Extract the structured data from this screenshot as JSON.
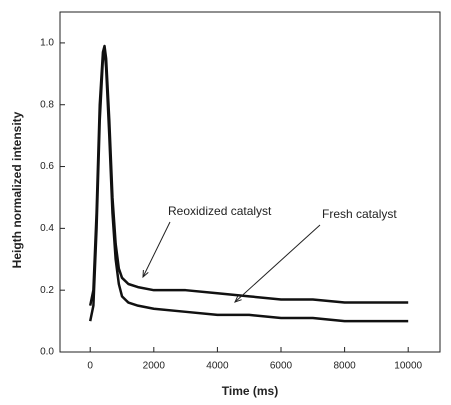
{
  "chart_data": {
    "type": "line",
    "xlabel": "Time (ms)",
    "ylabel": "Heigth normalized intensity",
    "x": [
      0,
      100,
      200,
      300,
      400,
      450,
      500,
      600,
      700,
      800,
      900,
      1000,
      1200,
      1500,
      2000,
      3000,
      4000,
      5000,
      6000,
      7000,
      8000,
      9000,
      10000
    ],
    "series": [
      {
        "name": "Reoxidized catalyst",
        "color": "#111111",
        "values": [
          0.15,
          0.2,
          0.45,
          0.8,
          0.97,
          0.99,
          0.95,
          0.75,
          0.5,
          0.35,
          0.27,
          0.24,
          0.22,
          0.21,
          0.2,
          0.2,
          0.19,
          0.18,
          0.17,
          0.17,
          0.16,
          0.16,
          0.16
        ]
      },
      {
        "name": "Fresh catalyst",
        "color": "#111111",
        "values": [
          0.1,
          0.15,
          0.4,
          0.75,
          0.95,
          0.98,
          0.92,
          0.7,
          0.45,
          0.3,
          0.22,
          0.18,
          0.16,
          0.15,
          0.14,
          0.13,
          0.12,
          0.12,
          0.11,
          0.11,
          0.1,
          0.1,
          0.1
        ]
      }
    ],
    "xlim": [
      -950,
      11000
    ],
    "ylim": [
      0,
      1.1
    ],
    "xticks": [
      0,
      2000,
      4000,
      6000,
      8000,
      10000
    ],
    "yticks": [
      {
        "value": 0,
        "label": "0.0"
      },
      0.2,
      0.4,
      0.6,
      0.8,
      {
        "value": 1,
        "label": "1.0"
      }
    ],
    "grid": false
  }
}
